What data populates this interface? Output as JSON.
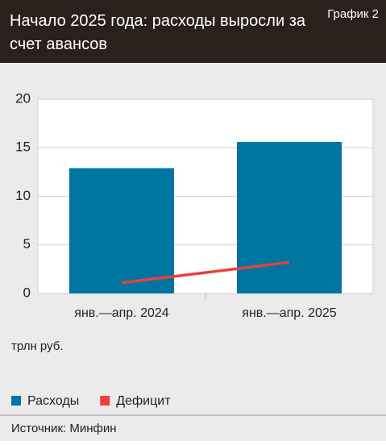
{
  "chart_data": {
    "type": "bar",
    "title": "Начало 2025 года: расходы выросли за счет авансов",
    "label": "График 2",
    "y_axis_label": "трлн руб.",
    "source": "Источник: Минфин",
    "categories": [
      "янв.—апр. 2024",
      "янв.—апр. 2025"
    ],
    "series": [
      {
        "name": "Расходы",
        "type": "bar",
        "color": "#00759f",
        "values": [
          12.9,
          15.6
        ]
      },
      {
        "name": "Дефицит",
        "type": "line",
        "color": "#e8413d",
        "values": [
          1.1,
          3.2
        ]
      }
    ],
    "ylim": [
      0,
      20
    ],
    "yticks": [
      0,
      5,
      10,
      15,
      20
    ],
    "grid": true
  }
}
